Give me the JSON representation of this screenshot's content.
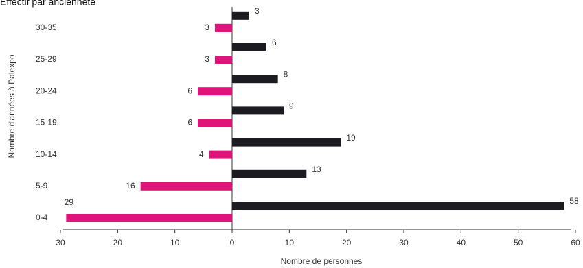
{
  "chart_data": {
    "type": "bar",
    "orientation": "horizontal",
    "title": "Effectif par ancienneté",
    "xlabel": "Nombre de personnes",
    "ylabel": "Nombre d'années à Palexpo",
    "categories": [
      "0-4",
      "5-9",
      "10-14",
      "15-19",
      "20-24",
      "25-29",
      "30-35"
    ],
    "series": [
      {
        "color": "#e0137a",
        "values": [
          -29,
          -16,
          -4,
          -6,
          -6,
          -3,
          -3
        ],
        "value_labels": [
          "29",
          "16",
          "4",
          "6",
          "6",
          "3",
          "3"
        ]
      },
      {
        "color": "#1c1b21",
        "values": [
          58,
          13,
          19,
          9,
          8,
          6,
          3
        ]
      }
    ],
    "xlim": [
      -30,
      60
    ],
    "xticks": [
      {
        "value": -30,
        "label": "30"
      },
      {
        "value": -20,
        "label": "20"
      },
      {
        "value": -10,
        "label": "10"
      },
      0,
      10,
      20,
      30,
      40,
      50,
      60
    ]
  }
}
